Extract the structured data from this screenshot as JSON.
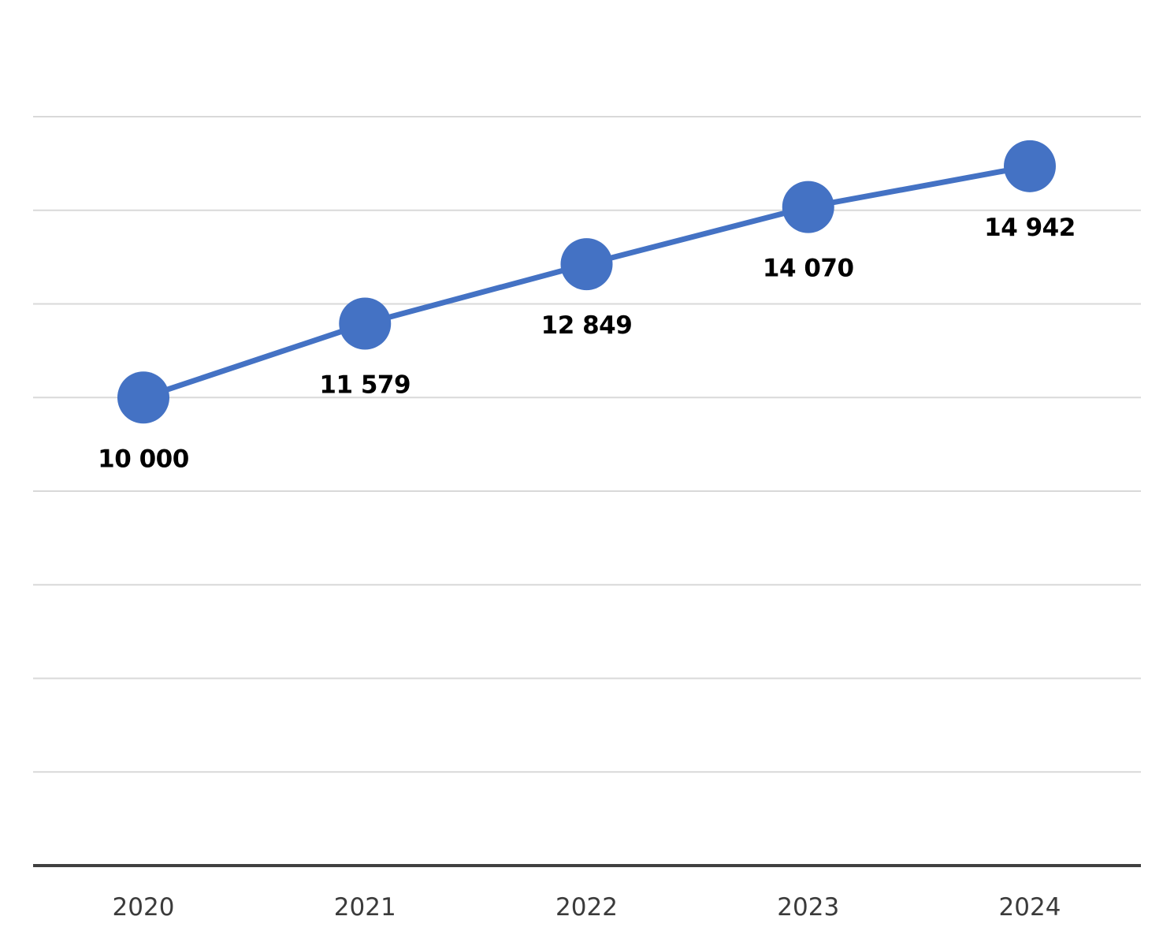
{
  "chart_data": {
    "type": "line",
    "title": "",
    "xlabel": "",
    "ylabel": "",
    "categories": [
      "2020",
      "2021",
      "2022",
      "2023",
      "2024"
    ],
    "series": [
      {
        "values": [
          10000,
          11579,
          12849,
          14070,
          14942
        ],
        "labels": [
          "10 000",
          "11 579",
          "12 849",
          "14 070",
          "14 942"
        ],
        "color": "#4472c4"
      }
    ],
    "ylim": [
      0,
      16000
    ],
    "grid": true,
    "y_tick_labels_shown": false,
    "legend": "none",
    "marker": "circle"
  }
}
